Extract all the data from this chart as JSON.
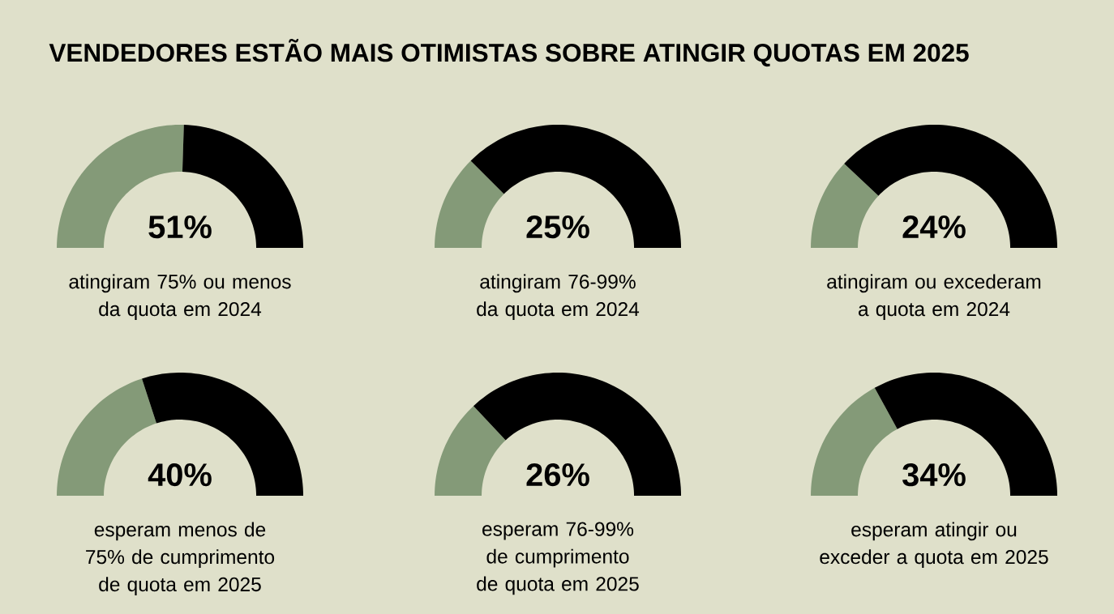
{
  "chart_data": [
    {
      "type": "donut",
      "title": "VENDEDORES ESTÃO MAIS OTIMISTAS SOBRE ATINGIR QUOTAS EM 2025",
      "subtitle": "atingiram 75% ou menos da quota em 2024",
      "categories": [
        null,
        null
      ],
      "values": [
        51,
        49
      ],
      "colors": [
        "#849a78",
        "#000000"
      ],
      "annotations": [
        "51%"
      ]
    },
    {
      "type": "donut",
      "subtitle": "atingiram 76-99% da quota em 2024",
      "categories": [
        null,
        null
      ],
      "values": [
        25,
        75
      ],
      "colors": [
        "#849a78",
        "#000000"
      ],
      "annotations": [
        "25%"
      ]
    },
    {
      "type": "donut",
      "subtitle": "atingiram ou excederam a quota em 2024",
      "categories": [
        null,
        null
      ],
      "values": [
        24,
        76
      ],
      "colors": [
        "#849a78",
        "#000000"
      ],
      "annotations": [
        "24%"
      ]
    },
    {
      "type": "donut",
      "subtitle": "esperam menos de 75% de cumprimento de quota em 2025",
      "categories": [
        null,
        null
      ],
      "values": [
        40,
        60
      ],
      "colors": [
        "#849a78",
        "#000000"
      ],
      "annotations": [
        "40%"
      ]
    },
    {
      "type": "donut",
      "subtitle": "esperam 76-99% de cumprimento de quota em 2025",
      "categories": [
        null,
        null
      ],
      "values": [
        26,
        74
      ],
      "colors": [
        "#849a78",
        "#000000"
      ],
      "annotations": [
        "26%"
      ]
    },
    {
      "type": "donut",
      "subtitle": "esperam atingir ou exceder a quota em 2025",
      "categories": [
        null,
        null
      ],
      "values": [
        34,
        66
      ],
      "colors": [
        "#849a78",
        "#000000"
      ],
      "annotations": [
        "34%"
      ]
    }
  ]
}
